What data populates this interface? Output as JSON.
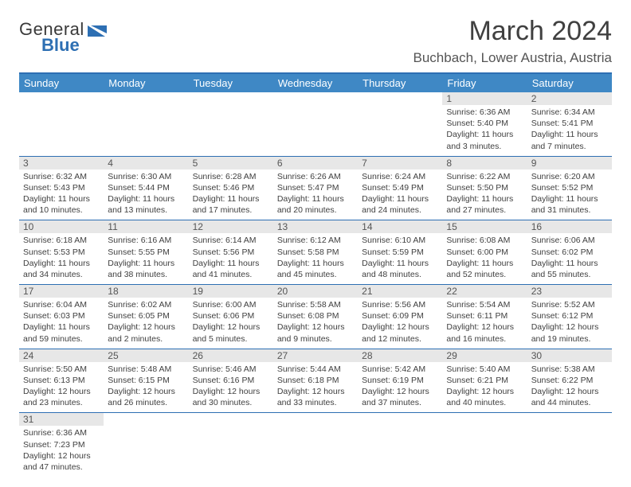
{
  "logo": {
    "line1": "General",
    "line2": "Blue"
  },
  "title": "March 2024",
  "location": "Buchbach, Lower Austria, Austria",
  "header_bg": "#3f88c5",
  "border_color": "#2d6fb3",
  "daynum_bg": "#e7e7e7",
  "weekdays": [
    "Sunday",
    "Monday",
    "Tuesday",
    "Wednesday",
    "Thursday",
    "Friday",
    "Saturday"
  ],
  "weeks": [
    [
      null,
      null,
      null,
      null,
      null,
      {
        "num": "1",
        "sunrise": "Sunrise: 6:36 AM",
        "sunset": "Sunset: 5:40 PM",
        "daylight1": "Daylight: 11 hours",
        "daylight2": "and 3 minutes."
      },
      {
        "num": "2",
        "sunrise": "Sunrise: 6:34 AM",
        "sunset": "Sunset: 5:41 PM",
        "daylight1": "Daylight: 11 hours",
        "daylight2": "and 7 minutes."
      }
    ],
    [
      {
        "num": "3",
        "sunrise": "Sunrise: 6:32 AM",
        "sunset": "Sunset: 5:43 PM",
        "daylight1": "Daylight: 11 hours",
        "daylight2": "and 10 minutes."
      },
      {
        "num": "4",
        "sunrise": "Sunrise: 6:30 AM",
        "sunset": "Sunset: 5:44 PM",
        "daylight1": "Daylight: 11 hours",
        "daylight2": "and 13 minutes."
      },
      {
        "num": "5",
        "sunrise": "Sunrise: 6:28 AM",
        "sunset": "Sunset: 5:46 PM",
        "daylight1": "Daylight: 11 hours",
        "daylight2": "and 17 minutes."
      },
      {
        "num": "6",
        "sunrise": "Sunrise: 6:26 AM",
        "sunset": "Sunset: 5:47 PM",
        "daylight1": "Daylight: 11 hours",
        "daylight2": "and 20 minutes."
      },
      {
        "num": "7",
        "sunrise": "Sunrise: 6:24 AM",
        "sunset": "Sunset: 5:49 PM",
        "daylight1": "Daylight: 11 hours",
        "daylight2": "and 24 minutes."
      },
      {
        "num": "8",
        "sunrise": "Sunrise: 6:22 AM",
        "sunset": "Sunset: 5:50 PM",
        "daylight1": "Daylight: 11 hours",
        "daylight2": "and 27 minutes."
      },
      {
        "num": "9",
        "sunrise": "Sunrise: 6:20 AM",
        "sunset": "Sunset: 5:52 PM",
        "daylight1": "Daylight: 11 hours",
        "daylight2": "and 31 minutes."
      }
    ],
    [
      {
        "num": "10",
        "sunrise": "Sunrise: 6:18 AM",
        "sunset": "Sunset: 5:53 PM",
        "daylight1": "Daylight: 11 hours",
        "daylight2": "and 34 minutes."
      },
      {
        "num": "11",
        "sunrise": "Sunrise: 6:16 AM",
        "sunset": "Sunset: 5:55 PM",
        "daylight1": "Daylight: 11 hours",
        "daylight2": "and 38 minutes."
      },
      {
        "num": "12",
        "sunrise": "Sunrise: 6:14 AM",
        "sunset": "Sunset: 5:56 PM",
        "daylight1": "Daylight: 11 hours",
        "daylight2": "and 41 minutes."
      },
      {
        "num": "13",
        "sunrise": "Sunrise: 6:12 AM",
        "sunset": "Sunset: 5:58 PM",
        "daylight1": "Daylight: 11 hours",
        "daylight2": "and 45 minutes."
      },
      {
        "num": "14",
        "sunrise": "Sunrise: 6:10 AM",
        "sunset": "Sunset: 5:59 PM",
        "daylight1": "Daylight: 11 hours",
        "daylight2": "and 48 minutes."
      },
      {
        "num": "15",
        "sunrise": "Sunrise: 6:08 AM",
        "sunset": "Sunset: 6:00 PM",
        "daylight1": "Daylight: 11 hours",
        "daylight2": "and 52 minutes."
      },
      {
        "num": "16",
        "sunrise": "Sunrise: 6:06 AM",
        "sunset": "Sunset: 6:02 PM",
        "daylight1": "Daylight: 11 hours",
        "daylight2": "and 55 minutes."
      }
    ],
    [
      {
        "num": "17",
        "sunrise": "Sunrise: 6:04 AM",
        "sunset": "Sunset: 6:03 PM",
        "daylight1": "Daylight: 11 hours",
        "daylight2": "and 59 minutes."
      },
      {
        "num": "18",
        "sunrise": "Sunrise: 6:02 AM",
        "sunset": "Sunset: 6:05 PM",
        "daylight1": "Daylight: 12 hours",
        "daylight2": "and 2 minutes."
      },
      {
        "num": "19",
        "sunrise": "Sunrise: 6:00 AM",
        "sunset": "Sunset: 6:06 PM",
        "daylight1": "Daylight: 12 hours",
        "daylight2": "and 5 minutes."
      },
      {
        "num": "20",
        "sunrise": "Sunrise: 5:58 AM",
        "sunset": "Sunset: 6:08 PM",
        "daylight1": "Daylight: 12 hours",
        "daylight2": "and 9 minutes."
      },
      {
        "num": "21",
        "sunrise": "Sunrise: 5:56 AM",
        "sunset": "Sunset: 6:09 PM",
        "daylight1": "Daylight: 12 hours",
        "daylight2": "and 12 minutes."
      },
      {
        "num": "22",
        "sunrise": "Sunrise: 5:54 AM",
        "sunset": "Sunset: 6:11 PM",
        "daylight1": "Daylight: 12 hours",
        "daylight2": "and 16 minutes."
      },
      {
        "num": "23",
        "sunrise": "Sunrise: 5:52 AM",
        "sunset": "Sunset: 6:12 PM",
        "daylight1": "Daylight: 12 hours",
        "daylight2": "and 19 minutes."
      }
    ],
    [
      {
        "num": "24",
        "sunrise": "Sunrise: 5:50 AM",
        "sunset": "Sunset: 6:13 PM",
        "daylight1": "Daylight: 12 hours",
        "daylight2": "and 23 minutes."
      },
      {
        "num": "25",
        "sunrise": "Sunrise: 5:48 AM",
        "sunset": "Sunset: 6:15 PM",
        "daylight1": "Daylight: 12 hours",
        "daylight2": "and 26 minutes."
      },
      {
        "num": "26",
        "sunrise": "Sunrise: 5:46 AM",
        "sunset": "Sunset: 6:16 PM",
        "daylight1": "Daylight: 12 hours",
        "daylight2": "and 30 minutes."
      },
      {
        "num": "27",
        "sunrise": "Sunrise: 5:44 AM",
        "sunset": "Sunset: 6:18 PM",
        "daylight1": "Daylight: 12 hours",
        "daylight2": "and 33 minutes."
      },
      {
        "num": "28",
        "sunrise": "Sunrise: 5:42 AM",
        "sunset": "Sunset: 6:19 PM",
        "daylight1": "Daylight: 12 hours",
        "daylight2": "and 37 minutes."
      },
      {
        "num": "29",
        "sunrise": "Sunrise: 5:40 AM",
        "sunset": "Sunset: 6:21 PM",
        "daylight1": "Daylight: 12 hours",
        "daylight2": "and 40 minutes."
      },
      {
        "num": "30",
        "sunrise": "Sunrise: 5:38 AM",
        "sunset": "Sunset: 6:22 PM",
        "daylight1": "Daylight: 12 hours",
        "daylight2": "and 44 minutes."
      }
    ],
    [
      {
        "num": "31",
        "sunrise": "Sunrise: 6:36 AM",
        "sunset": "Sunset: 7:23 PM",
        "daylight1": "Daylight: 12 hours",
        "daylight2": "and 47 minutes."
      },
      null,
      null,
      null,
      null,
      null,
      null
    ]
  ]
}
